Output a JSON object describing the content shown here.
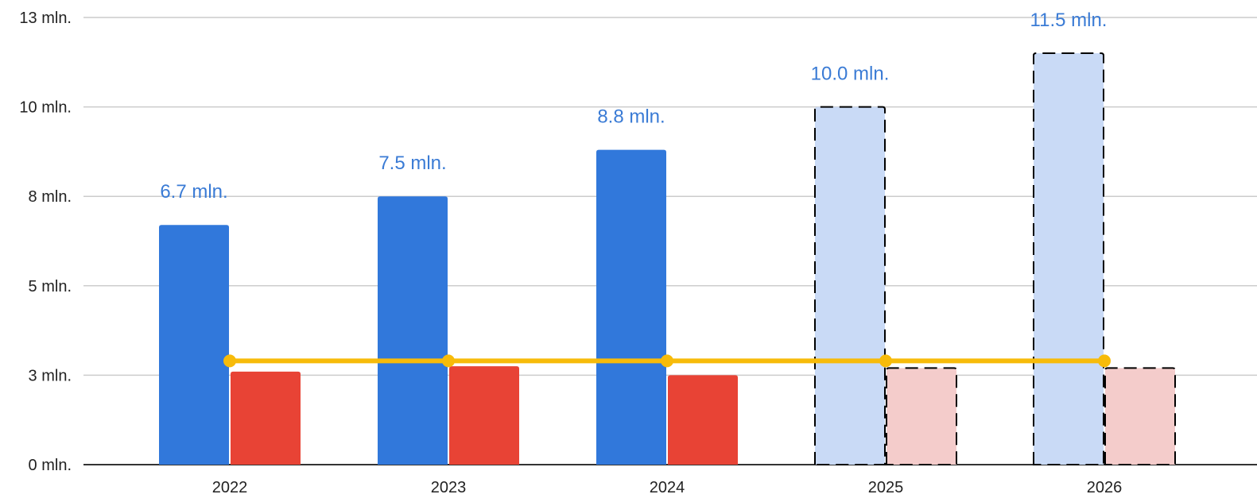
{
  "chart_data": {
    "type": "bar",
    "title": "",
    "xlabel": "",
    "ylabel": "",
    "ylim": [
      0,
      12.5
    ],
    "grid": true,
    "legend": "none",
    "y_ticks": [
      {
        "value": 0,
        "label": "0 mln."
      },
      {
        "value": 2.5,
        "label": "3 mln."
      },
      {
        "value": 5,
        "label": "5 mln."
      },
      {
        "value": 7.5,
        "label": "8 mln."
      },
      {
        "value": 10,
        "label": "10 mln."
      },
      {
        "value": 12.5,
        "label": "13 mln."
      }
    ],
    "categories": [
      "2022",
      "2023",
      "2024",
      "2025",
      "2026"
    ],
    "projected": [
      false,
      false,
      false,
      true,
      true
    ],
    "series": [
      {
        "type": "bar",
        "values": [
          6.7,
          7.5,
          8.8,
          10.0,
          11.5
        ],
        "labels": [
          "6.7 mln.",
          "7.5 mln.",
          "8.8 mln.",
          "10.0 mln.",
          "11.5 mln."
        ],
        "color": "#3178db",
        "projected_color": "#c9daf6"
      },
      {
        "type": "bar",
        "values": [
          2.6,
          2.75,
          2.5,
          2.7,
          2.7
        ],
        "color": "#e84335",
        "projected_color": "#f4cccb"
      },
      {
        "type": "line",
        "values": [
          2.9,
          2.9,
          2.9,
          2.9,
          2.9
        ],
        "color": "#f7bb0a"
      }
    ],
    "colors": {
      "grid": "#cccccc",
      "axis": "#333333",
      "projected_border": "#000000",
      "data_label": "#3a7bd5"
    }
  }
}
